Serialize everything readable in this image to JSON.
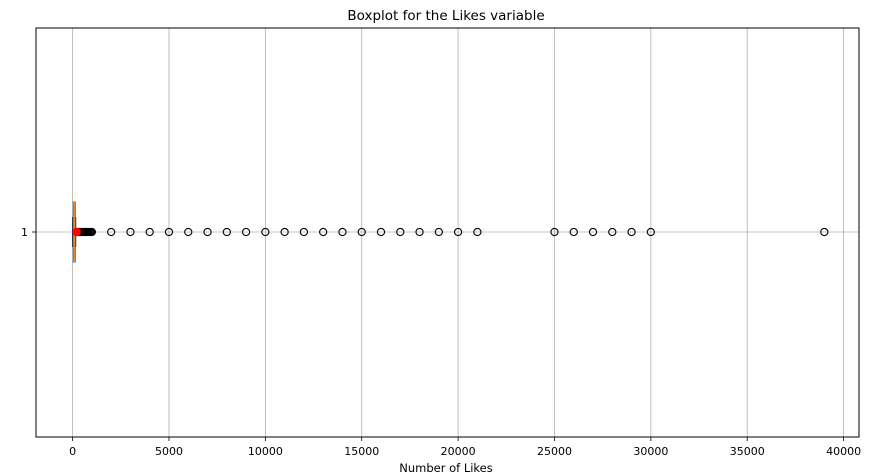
{
  "chart_data": {
    "type": "boxplot",
    "orientation": "horizontal",
    "title": "Boxplot for the Likes variable",
    "xlabel": "Number of Likes",
    "ylabel": "",
    "xlim": [
      -1900,
      40800
    ],
    "xticks": [
      0,
      5000,
      10000,
      15000,
      20000,
      25000,
      30000,
      35000,
      40000
    ],
    "yticks": [
      "1"
    ],
    "grid": true,
    "box": {
      "category": "1",
      "q1": 30,
      "median": 80,
      "q3": 140,
      "whisker_low": 0,
      "whisker_high": 160,
      "mean": 210
    },
    "outliers": [
      200,
      250,
      300,
      350,
      400,
      450,
      500,
      550,
      600,
      650,
      700,
      750,
      800,
      850,
      900,
      950,
      1000,
      2000,
      3000,
      4000,
      5000,
      6000,
      7000,
      8000,
      9000,
      10000,
      11000,
      12000,
      13000,
      14000,
      15000,
      16000,
      17000,
      18000,
      19000,
      20000,
      21000,
      25000,
      26000,
      27000,
      28000,
      29000,
      30000,
      39000
    ],
    "colors": {
      "box": "#1f77b4",
      "median": "#ff7f0e",
      "mean": "#ff0000",
      "outlier": "#000000",
      "grid": "#b0b0b0"
    }
  }
}
